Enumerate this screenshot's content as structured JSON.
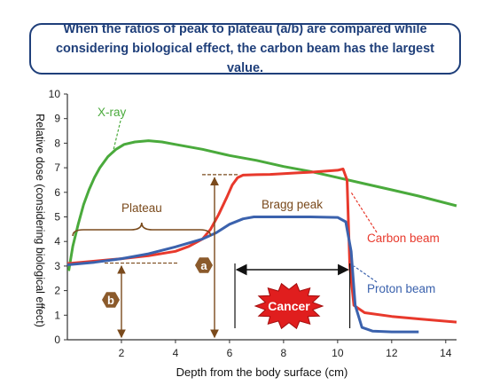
{
  "banner": {
    "text": "When the ratios of peak to plateau (a/b) are compared while considering biological effect, the carbon beam has the largest value."
  },
  "chart_data": {
    "type": "line",
    "title": "",
    "xlabel": "Depth from the body surface (cm)",
    "ylabel": "Relative dose (considering biological effect)",
    "xlim": [
      0,
      14.4
    ],
    "ylim": [
      0,
      10
    ],
    "xticks": [
      2,
      4,
      6,
      8,
      10,
      12,
      14
    ],
    "yticks": [
      0,
      1,
      2,
      3,
      4,
      5,
      6,
      7,
      8,
      9,
      10
    ],
    "grid": false,
    "series": [
      {
        "name": "X-ray",
        "color": "#4aaa3c",
        "x": [
          0.05,
          0.2,
          0.4,
          0.6,
          0.8,
          1.0,
          1.2,
          1.5,
          1.8,
          2.1,
          2.5,
          3.0,
          3.5,
          4.0,
          5.0,
          6.0,
          7.0,
          8.0,
          9.0,
          10.0,
          11.0,
          12.0,
          13.0,
          14.4
        ],
        "y": [
          2.8,
          3.8,
          4.7,
          5.5,
          6.1,
          6.6,
          7.0,
          7.45,
          7.75,
          7.95,
          8.05,
          8.1,
          8.05,
          7.95,
          7.75,
          7.5,
          7.3,
          7.05,
          6.85,
          6.6,
          6.35,
          6.1,
          5.85,
          5.45
        ]
      },
      {
        "name": "Carbon beam",
        "color": "#e8392c",
        "x": [
          0,
          1,
          2,
          3,
          4,
          4.5,
          5.0,
          5.3,
          5.6,
          5.9,
          6.1,
          6.3,
          6.5,
          7,
          7.5,
          8,
          8.5,
          9,
          9.5,
          10,
          10.2,
          10.35,
          10.45,
          10.6,
          11,
          12,
          13,
          14.4
        ],
        "y": [
          3.1,
          3.2,
          3.3,
          3.42,
          3.6,
          3.8,
          4.1,
          4.5,
          5.1,
          5.8,
          6.3,
          6.6,
          6.7,
          6.72,
          6.73,
          6.76,
          6.79,
          6.82,
          6.86,
          6.9,
          6.95,
          6.5,
          3.0,
          1.4,
          1.1,
          0.95,
          0.85,
          0.72
        ]
      },
      {
        "name": "Proton beam",
        "color": "#3b62ad",
        "x": [
          0,
          1,
          2,
          3,
          4,
          5,
          5.5,
          6.0,
          6.5,
          6.9,
          7.5,
          8,
          9,
          10,
          10.3,
          10.5,
          10.65,
          10.9,
          11.3,
          12,
          13
        ],
        "y": [
          3.05,
          3.15,
          3.3,
          3.5,
          3.78,
          4.1,
          4.35,
          4.7,
          4.92,
          5.0,
          5.0,
          5.0,
          5.0,
          4.98,
          4.8,
          3.6,
          1.4,
          0.5,
          0.35,
          0.32,
          0.32
        ]
      }
    ],
    "annotations": {
      "plateau": "Plateau",
      "bragg_peak": "Bragg peak",
      "cancer": "Cancer",
      "marker_a": "a",
      "marker_b": "b"
    }
  }
}
